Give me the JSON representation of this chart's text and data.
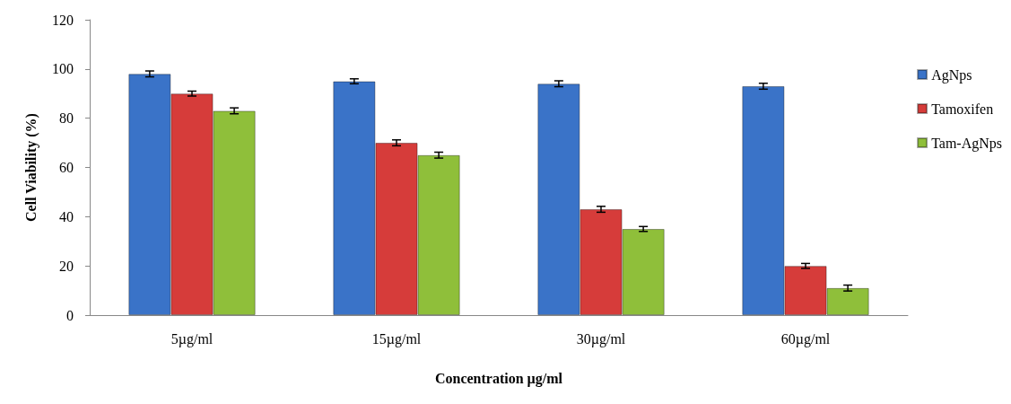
{
  "chart_data": {
    "type": "bar",
    "xlabel": "Concentration µg/ml",
    "ylabel": "Cell Viability (%)",
    "categories": [
      "5µg/ml",
      "15µg/ml",
      "30µg/ml",
      "60µg/ml"
    ],
    "series": [
      {
        "name": "AgNps",
        "color": "#3a73c8",
        "values": [
          98,
          95,
          94,
          93
        ],
        "errors": [
          1.2,
          1,
          1.2,
          1.2
        ]
      },
      {
        "name": "Tamoxifen",
        "color": "#d63c3a",
        "values": [
          90,
          70,
          43,
          20
        ],
        "errors": [
          1,
          1.2,
          1.2,
          1
        ]
      },
      {
        "name": "Tam-AgNps",
        "color": "#8fbf3a",
        "values": [
          83,
          65,
          35,
          11
        ],
        "errors": [
          1.2,
          1.2,
          1,
          1.2
        ]
      }
    ],
    "ylim": [
      0,
      120
    ],
    "yticks": [
      0,
      20,
      40,
      60,
      80,
      100,
      120
    ],
    "grid": false,
    "legend": "right"
  }
}
